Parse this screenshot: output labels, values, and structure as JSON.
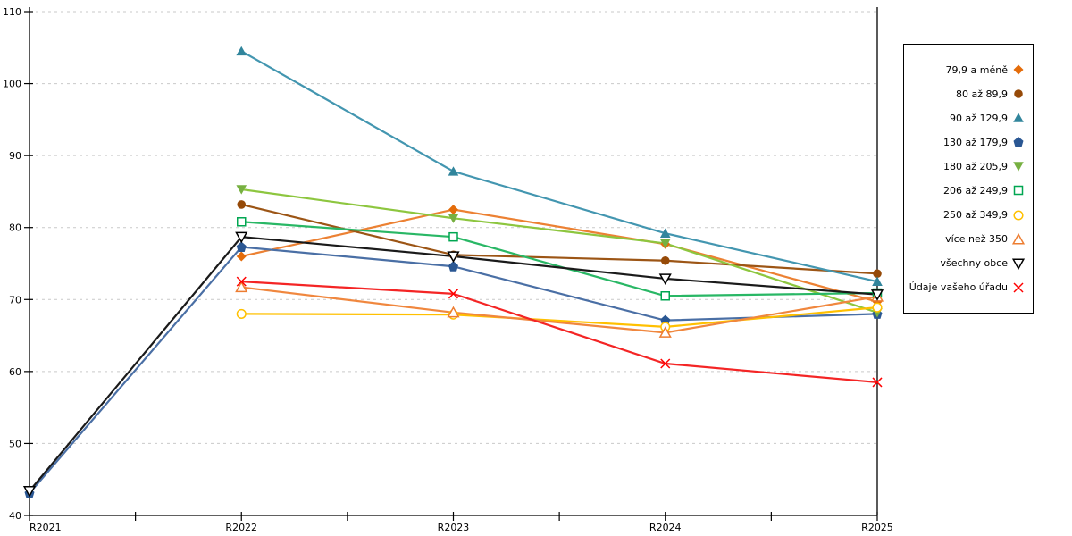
{
  "chart": {
    "background": "#ffffff",
    "axis_color": "#000000",
    "grid_color": "#c9c9c9",
    "tick_font_size": 11
  },
  "chart_data": {
    "type": "line",
    "title": "",
    "categories": [
      "R2021",
      "R2022",
      "R2023",
      "R2024",
      "R2025"
    ],
    "ylim": [
      40,
      110
    ],
    "ytick_step": 10,
    "yticks": [
      40,
      50,
      60,
      70,
      80,
      90,
      100,
      110
    ],
    "grid": "horizontal-dashed",
    "legend_position": "right",
    "series": [
      {
        "name": "79,9 a méně",
        "marker": "diamond",
        "fill": "filled",
        "color": "#E46C0A",
        "line_color": "#EC8133",
        "values": [
          null,
          76.0,
          82.5,
          77.7,
          69.7
        ]
      },
      {
        "name": "80 až 89,9",
        "marker": "circle",
        "fill": "filled",
        "color": "#964A08",
        "line_color": "#9C5515",
        "values": [
          null,
          83.2,
          76.2,
          75.4,
          73.6
        ]
      },
      {
        "name": "90 až 129,9",
        "marker": "triangle-up",
        "fill": "filled",
        "color": "#31859C",
        "line_color": "#4396B0",
        "values": [
          null,
          104.5,
          87.8,
          79.2,
          72.5
        ]
      },
      {
        "name": "130 až 179,9",
        "marker": "pentagon",
        "fill": "filled",
        "color": "#2A5793",
        "line_color": "#4A6FA5",
        "values": [
          43.1,
          77.3,
          74.6,
          67.1,
          68.0
        ]
      },
      {
        "name": "180 až 205,9",
        "marker": "triangle-down",
        "fill": "filled",
        "color": "#77B041",
        "line_color": "#8DC63F",
        "values": [
          null,
          85.3,
          81.3,
          77.8,
          68.2
        ]
      },
      {
        "name": "206 až 249,9",
        "marker": "square",
        "fill": "open",
        "color": "#00A651",
        "line_color": "#29B765",
        "values": [
          null,
          80.8,
          78.7,
          70.5,
          70.9
        ]
      },
      {
        "name": "250 až 349,9",
        "marker": "circle",
        "fill": "open",
        "color": "#FFC000",
        "line_color": "#FFC000",
        "values": [
          null,
          68.0,
          67.9,
          66.2,
          68.9
        ]
      },
      {
        "name": "více než 350",
        "marker": "triangle-up",
        "fill": "open",
        "color": "#ED7D31",
        "line_color": "#F0873E",
        "values": [
          null,
          71.7,
          68.2,
          65.4,
          70.4
        ]
      },
      {
        "name": "všechny obce",
        "marker": "triangle-down",
        "fill": "open",
        "color": "#000000",
        "line_color": "#1A1A1A",
        "values": [
          43.4,
          78.7,
          76.0,
          72.9,
          70.7
        ]
      },
      {
        "name": "Údaje vašeho úřadu",
        "marker": "x",
        "fill": "stroke",
        "color": "#FF0000",
        "line_color": "#F42525",
        "values": [
          null,
          72.5,
          70.8,
          61.1,
          58.5
        ]
      }
    ]
  }
}
